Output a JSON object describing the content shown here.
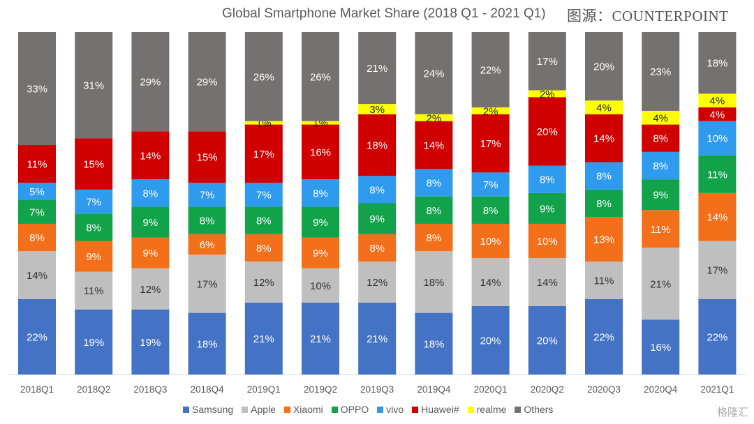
{
  "header": {
    "title": "Global Smartphone Market Share (2018 Q1 - 2021 Q1)",
    "source": "图源：COUNTERPOINT"
  },
  "watermark": "格隆汇",
  "chart_data": {
    "type": "bar",
    "stacked": true,
    "title": "Global Smartphone Market Share (2018 Q1 - 2021 Q1)",
    "xlabel": "",
    "ylabel": "",
    "ylim": [
      0,
      100
    ],
    "legend_position": "bottom",
    "categories": [
      "2018Q1",
      "2018Q2",
      "2018Q3",
      "2018Q4",
      "2019Q1",
      "2019Q2",
      "2019Q3",
      "2019Q4",
      "2020Q1",
      "2020Q2",
      "2020Q3",
      "2020Q4",
      "2021Q1"
    ],
    "series": [
      {
        "name": "Samsung",
        "color": "#4472C4",
        "label_color": "#ffffff",
        "values": [
          22,
          19,
          19,
          18,
          21,
          21,
          21,
          18,
          20,
          20,
          22,
          16,
          22
        ]
      },
      {
        "name": "Apple",
        "color": "#BFBFBF",
        "label_color": "#333333",
        "values": [
          14,
          11,
          12,
          17,
          12,
          10,
          12,
          18,
          14,
          14,
          11,
          21,
          17
        ]
      },
      {
        "name": "Xiaomi",
        "color": "#F46F1A",
        "label_color": "#ffffff",
        "values": [
          8,
          9,
          9,
          6,
          8,
          9,
          8,
          8,
          10,
          10,
          13,
          11,
          14
        ]
      },
      {
        "name": "OPPO",
        "color": "#11A24A",
        "label_color": "#ffffff",
        "values": [
          7,
          8,
          9,
          8,
          8,
          9,
          9,
          8,
          8,
          9,
          8,
          9,
          11
        ]
      },
      {
        "name": "vivo",
        "color": "#2F9BEF",
        "label_color": "#ffffff",
        "values": [
          5,
          7,
          8,
          7,
          7,
          8,
          8,
          8,
          7,
          8,
          8,
          8,
          10
        ]
      },
      {
        "name": "Huawei#",
        "color": "#D00000",
        "label_color": "#ffffff",
        "values": [
          11,
          15,
          14,
          15,
          17,
          16,
          18,
          14,
          17,
          20,
          14,
          8,
          4
        ]
      },
      {
        "name": "realme",
        "color": "#FFFF00",
        "label_color": "#222222",
        "values": [
          null,
          null,
          null,
          null,
          1,
          1,
          3,
          2,
          2,
          2,
          4,
          4,
          4
        ]
      },
      {
        "name": "Others",
        "color": "#767171",
        "label_color": "#ffffff",
        "values": [
          33,
          31,
          29,
          29,
          26,
          26,
          21,
          24,
          22,
          17,
          20,
          23,
          18
        ]
      }
    ]
  }
}
